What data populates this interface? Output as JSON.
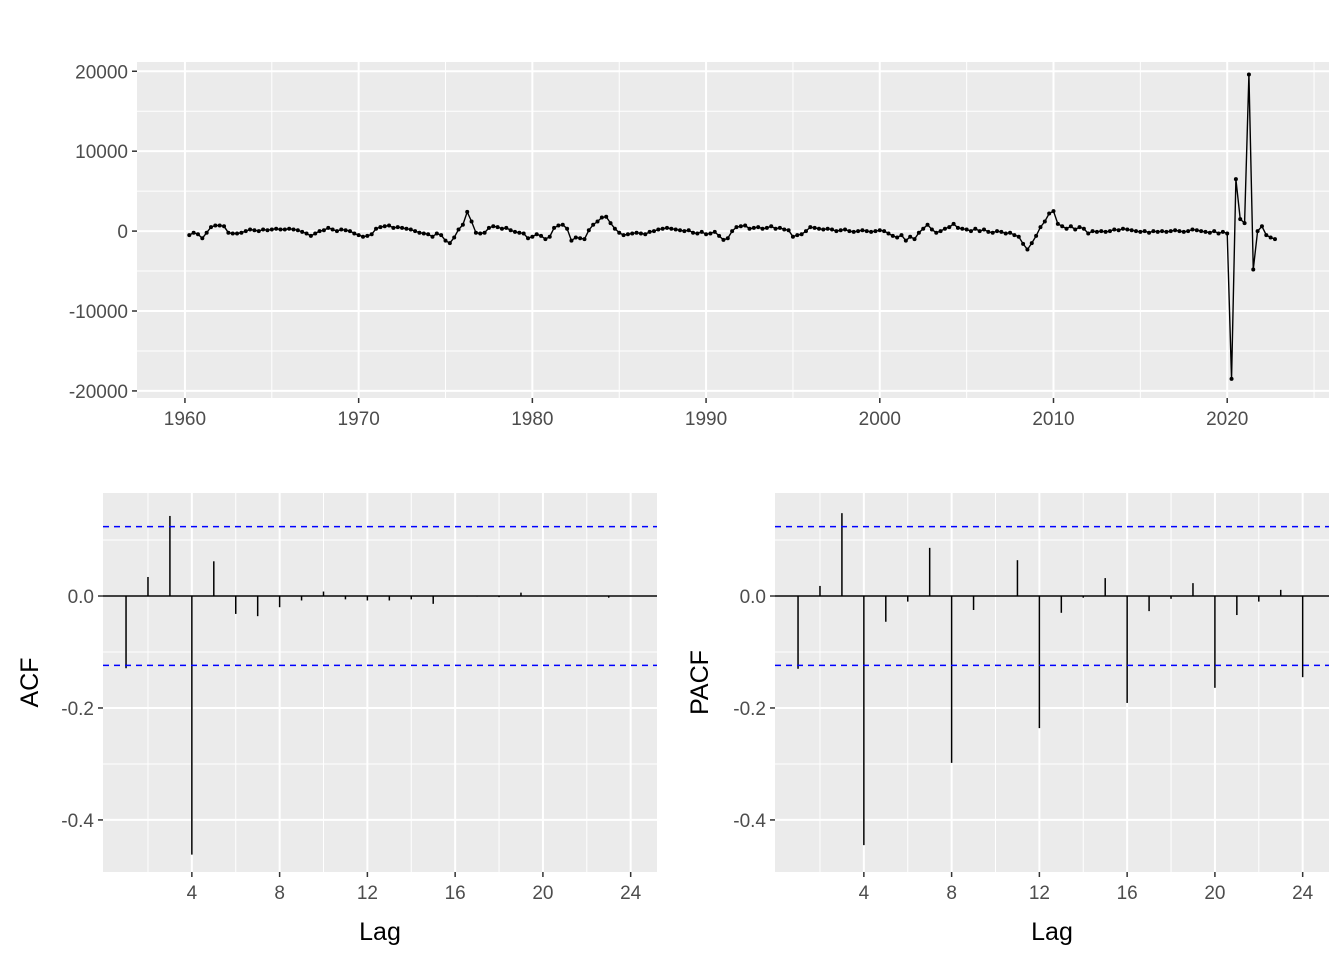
{
  "chart_data": [
    {
      "type": "line",
      "title": "",
      "xlabel": "",
      "ylabel": "",
      "start": 1960.25,
      "frequency": 4,
      "xlim": [
        1957.24,
        2025.86
      ],
      "ylim": [
        -20886,
        21160
      ],
      "xticks": [
        1960,
        1970,
        1980,
        1990,
        2000,
        2010,
        2020
      ],
      "xtick_labels": [
        "1960",
        "1970",
        "1980",
        "1990",
        "2000",
        "2010",
        "2020"
      ],
      "yticks": [
        -20000,
        -10000,
        0,
        10000,
        20000
      ],
      "ytick_labels": [
        "-20000",
        "-10000",
        "0",
        "10000",
        "20000"
      ],
      "grid": true,
      "values": [
        -500,
        -200,
        -400,
        -900,
        -200,
        500,
        700,
        700,
        600,
        -200,
        -300,
        -300,
        -200,
        0,
        200,
        100,
        0,
        200,
        100,
        200,
        300,
        200,
        200,
        300,
        200,
        100,
        -100,
        -300,
        -600,
        -300,
        0,
        100,
        400,
        200,
        0,
        200,
        100,
        0,
        -300,
        -500,
        -700,
        -600,
        -400,
        300,
        500,
        600,
        700,
        400,
        500,
        400,
        300,
        200,
        0,
        -200,
        -300,
        -400,
        -700,
        -300,
        -500,
        -1200,
        -1500,
        -800,
        200,
        800,
        2400,
        1200,
        -200,
        -300,
        -200,
        400,
        600,
        500,
        300,
        400,
        100,
        -100,
        -200,
        -300,
        -900,
        -700,
        -400,
        -600,
        -1000,
        -700,
        400,
        700,
        800,
        300,
        -1200,
        -800,
        -900,
        -1000,
        100,
        800,
        1200,
        1700,
        1800,
        1000,
        300,
        -200,
        -500,
        -400,
        -300,
        -200,
        -300,
        -400,
        -100,
        0,
        200,
        300,
        400,
        300,
        200,
        100,
        0,
        100,
        -200,
        -300,
        -100,
        -400,
        -300,
        -100,
        -600,
        -1100,
        -900,
        0,
        500,
        600,
        700,
        300,
        400,
        500,
        300,
        400,
        600,
        300,
        400,
        200,
        100,
        -700,
        -500,
        -400,
        0,
        500,
        400,
        300,
        200,
        300,
        200,
        0,
        100,
        200,
        0,
        -100,
        0,
        100,
        0,
        -100,
        0,
        100,
        0,
        -300,
        -600,
        -800,
        -500,
        -1200,
        -700,
        -1000,
        -200,
        300,
        800,
        200,
        -200,
        0,
        300,
        500,
        900,
        400,
        300,
        200,
        0,
        300,
        0,
        200,
        -100,
        -200,
        0,
        -100,
        -300,
        -200,
        -500,
        -700,
        -1600,
        -2300,
        -1500,
        -600,
        500,
        1200,
        2200,
        2500,
        900,
        600,
        300,
        600,
        200,
        500,
        300,
        -300,
        0,
        -100,
        0,
        -100,
        0,
        200,
        100,
        300,
        200,
        100,
        0,
        -100,
        0,
        -200,
        0,
        -100,
        0,
        -100,
        0,
        100,
        0,
        -100,
        0,
        200,
        100,
        0,
        -100,
        -200,
        0,
        -300,
        -100,
        -300,
        -18500,
        6500,
        1500,
        1000,
        19600,
        -4800,
        0,
        600,
        -500,
        -800,
        -1000
      ]
    },
    {
      "type": "bar",
      "title": "",
      "xlabel": "Lag",
      "ylabel": "ACF",
      "lags": [
        1,
        2,
        3,
        4,
        5,
        6,
        7,
        8,
        9,
        10,
        11,
        12,
        13,
        14,
        15,
        16,
        17,
        18,
        19,
        20,
        21,
        22,
        23,
        24
      ],
      "values": [
        -0.129,
        0.034,
        0.143,
        -0.462,
        0.062,
        -0.032,
        -0.036,
        -0.02,
        -0.008,
        0.008,
        -0.006,
        -0.008,
        -0.008,
        -0.006,
        -0.014,
        0.0,
        -0.001,
        -0.002,
        0.006,
        0.0,
        0.0,
        -0.001,
        -0.003,
        0.0
      ],
      "ci": 0.124,
      "xlim": [
        -0.05,
        25.2
      ],
      "ylim": [
        -0.493,
        0.184
      ],
      "xticks": [
        4,
        8,
        12,
        16,
        20,
        24
      ],
      "xtick_labels": [
        "4",
        "8",
        "12",
        "16",
        "20",
        "24"
      ],
      "yticks": [
        -0.4,
        -0.2,
        0.0
      ],
      "ytick_labels": [
        "-0.4",
        "-0.2",
        "0.0"
      ],
      "grid": true
    },
    {
      "type": "bar",
      "title": "",
      "xlabel": "Lag",
      "ylabel": "PACF",
      "lags": [
        1,
        2,
        3,
        4,
        5,
        6,
        7,
        8,
        9,
        10,
        11,
        12,
        13,
        14,
        15,
        16,
        17,
        18,
        19,
        20,
        21,
        22,
        23,
        24
      ],
      "values": [
        -0.13,
        0.018,
        0.148,
        -0.445,
        -0.046,
        -0.01,
        0.086,
        -0.298,
        -0.025,
        0.0,
        0.064,
        -0.236,
        -0.03,
        -0.003,
        0.032,
        -0.191,
        -0.027,
        -0.005,
        0.023,
        -0.164,
        -0.034,
        -0.01,
        0.011,
        -0.145
      ],
      "ci": 0.124,
      "xlim": [
        -0.05,
        25.2
      ],
      "ylim": [
        -0.493,
        0.184
      ],
      "xticks": [
        4,
        8,
        12,
        16,
        20,
        24
      ],
      "xtick_labels": [
        "4",
        "8",
        "12",
        "16",
        "20",
        "24"
      ],
      "yticks": [
        -0.4,
        -0.2,
        0.0
      ],
      "ytick_labels": [
        "-0.4",
        "-0.2",
        "0.0"
      ],
      "grid": true
    }
  ]
}
